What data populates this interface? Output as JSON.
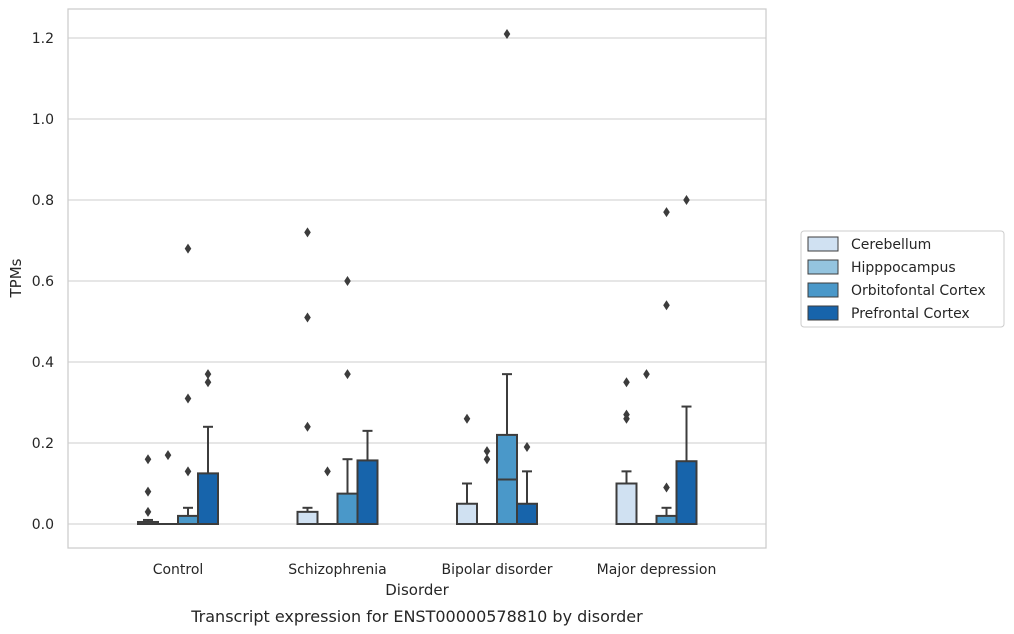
{
  "caption": "Transcript expression for ENST00000578810 by disorder",
  "chart_data": {
    "type": "box",
    "title": "",
    "xlabel": "Disorder",
    "ylabel": "TPMs",
    "ylim": [
      -0.06,
      1.27
    ],
    "yticks": [
      0.0,
      0.2,
      0.4,
      0.6,
      0.8,
      1.0,
      1.2
    ],
    "ytick_labels": [
      "0.0",
      "0.2",
      "0.4",
      "0.6",
      "0.8",
      "1.0",
      "1.2"
    ],
    "grid": "horizontal",
    "legend_position": "right",
    "categories": [
      "Control",
      "Schizophrenia",
      "Bipolar disorder",
      "Major depression"
    ],
    "series": [
      {
        "name": "Cerebellum",
        "color": "#d0e1f2",
        "boxes": [
          {
            "q1": 0.0,
            "median": 0.0,
            "q3": 0.005,
            "whisker_low": 0.0,
            "whisker_high": 0.01,
            "outliers": [
              0.03,
              0.08,
              0.16
            ]
          },
          {
            "q1": 0.0,
            "median": 0.0,
            "q3": 0.03,
            "whisker_low": 0.0,
            "whisker_high": 0.04,
            "outliers": [
              0.24,
              0.51,
              0.72
            ]
          },
          {
            "q1": 0.0,
            "median": 0.0,
            "q3": 0.05,
            "whisker_low": 0.0,
            "whisker_high": 0.1,
            "outliers": [
              0.26
            ]
          },
          {
            "q1": 0.0,
            "median": 0.0,
            "q3": 0.1,
            "whisker_low": 0.0,
            "whisker_high": 0.13,
            "outliers": [
              0.26,
              0.27,
              0.35
            ]
          }
        ]
      },
      {
        "name": "Hipppocampus",
        "color": "#94c4df",
        "boxes": [
          {
            "q1": 0.0,
            "median": 0.0,
            "q3": 0.0,
            "whisker_low": 0.0,
            "whisker_high": 0.0,
            "outliers": [
              0.17
            ]
          },
          {
            "q1": 0.0,
            "median": 0.0,
            "q3": 0.0,
            "whisker_low": 0.0,
            "whisker_high": 0.0,
            "outliers": [
              0.13
            ]
          },
          {
            "q1": 0.0,
            "median": 0.0,
            "q3": 0.0,
            "whisker_low": 0.0,
            "whisker_high": 0.0,
            "outliers": [
              0.16,
              0.18
            ]
          },
          {
            "q1": 0.0,
            "median": 0.0,
            "q3": 0.0,
            "whisker_low": 0.0,
            "whisker_high": 0.0,
            "outliers": [
              0.37
            ]
          }
        ]
      },
      {
        "name": "Orbitofontal Cortex",
        "color": "#4a98c9",
        "boxes": [
          {
            "q1": 0.0,
            "median": 0.0,
            "q3": 0.02,
            "whisker_low": 0.0,
            "whisker_high": 0.04,
            "outliers": [
              0.13,
              0.31,
              0.68
            ]
          },
          {
            "q1": 0.0,
            "median": 0.0,
            "q3": 0.075,
            "whisker_low": 0.0,
            "whisker_high": 0.16,
            "outliers": [
              0.37,
              0.6
            ]
          },
          {
            "q1": 0.0,
            "median": 0.11,
            "q3": 0.22,
            "whisker_low": 0.0,
            "whisker_high": 0.37,
            "outliers": [
              1.21
            ]
          },
          {
            "q1": 0.0,
            "median": 0.0,
            "q3": 0.02,
            "whisker_low": 0.0,
            "whisker_high": 0.04,
            "outliers": [
              0.09,
              0.54,
              0.77
            ]
          }
        ]
      },
      {
        "name": "Prefrontal Cortex",
        "color": "#1764ab",
        "boxes": [
          {
            "q1": 0.0,
            "median": 0.0,
            "q3": 0.125,
            "whisker_low": 0.0,
            "whisker_high": 0.24,
            "outliers": [
              0.35,
              0.37
            ]
          },
          {
            "q1": 0.0,
            "median": 0.0,
            "q3": 0.157,
            "whisker_low": 0.0,
            "whisker_high": 0.23,
            "outliers": []
          },
          {
            "q1": 0.0,
            "median": 0.0,
            "q3": 0.05,
            "whisker_low": 0.0,
            "whisker_high": 0.13,
            "outliers": [
              0.19
            ]
          },
          {
            "q1": 0.0,
            "median": 0.0,
            "q3": 0.155,
            "whisker_low": 0.0,
            "whisker_high": 0.29,
            "outliers": [
              0.8
            ]
          }
        ]
      }
    ]
  }
}
